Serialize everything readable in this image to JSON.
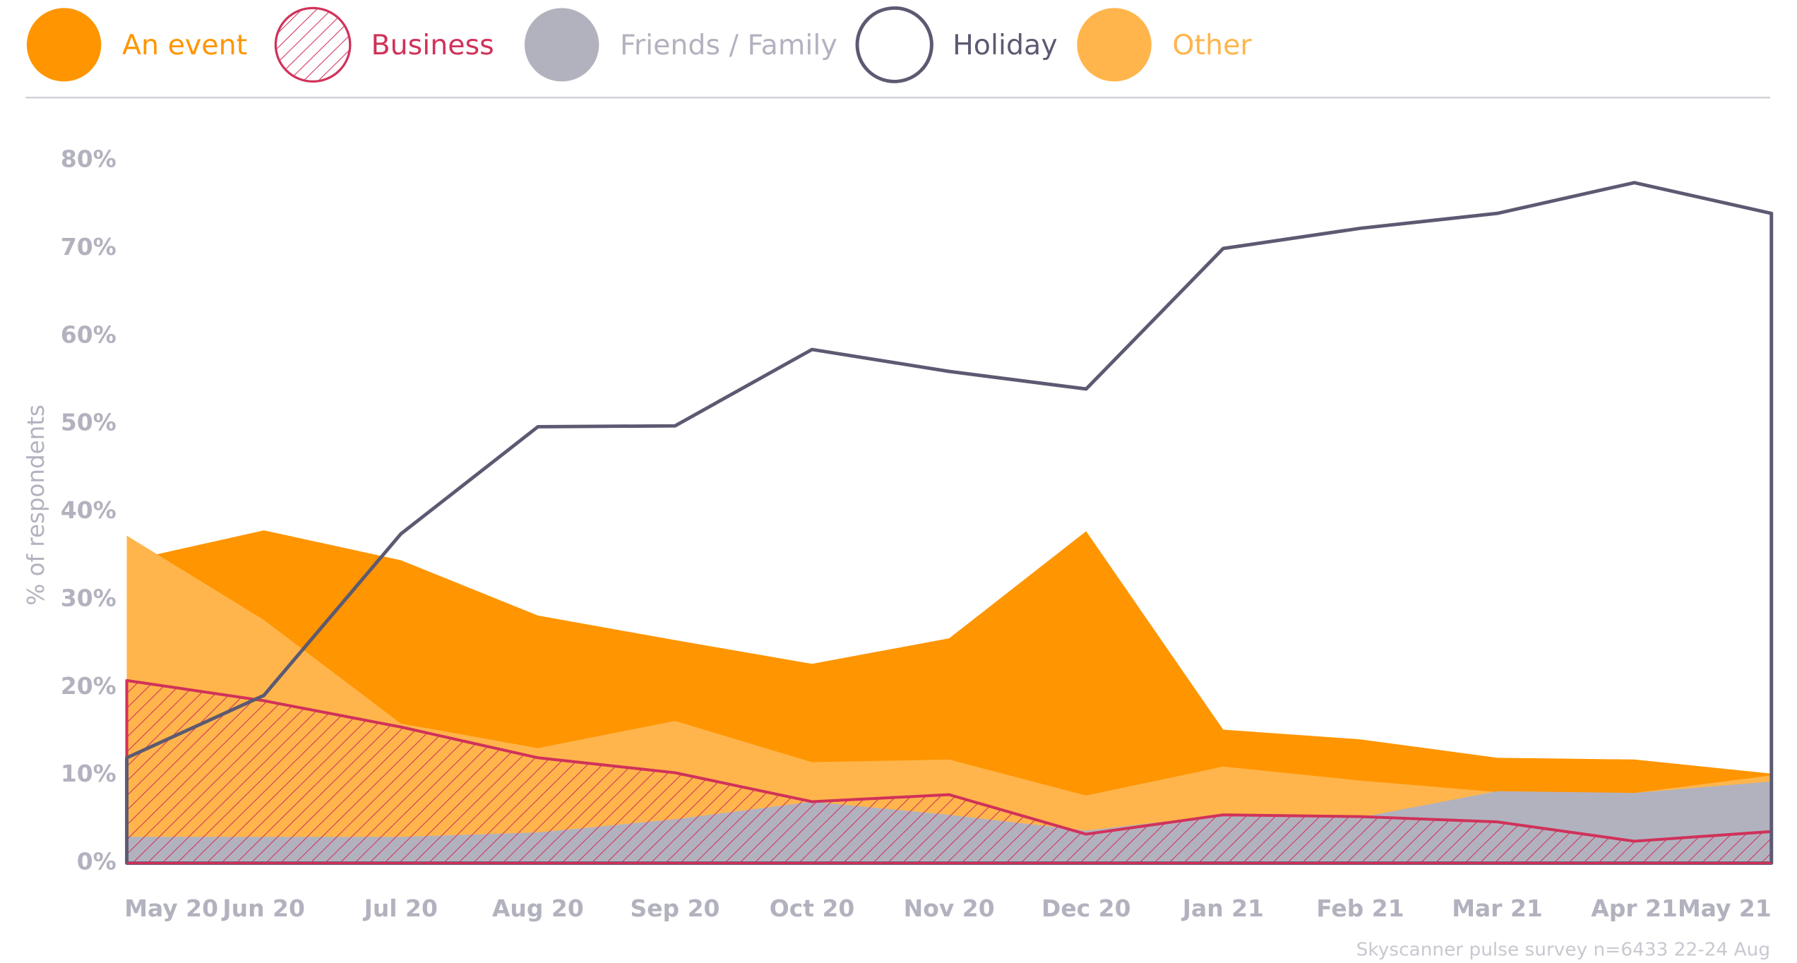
{
  "chart_data": {
    "type": "area",
    "y_label": "% of respondents",
    "source": "Skyscanner pulse survey n=6433 22-24 Aug",
    "categories": [
      "May 20",
      "Jun 20",
      "Jul 20",
      "Aug 20",
      "Sep 20",
      "Oct 20",
      "Nov 20",
      "Dec 20",
      "Jan 21",
      "Feb 21",
      "Mar 21",
      "Apr 21",
      "May 21"
    ],
    "series": [
      {
        "name": "An event",
        "color": "#ff9500",
        "style": "fill",
        "values": [
          34.4,
          37.9,
          34.5,
          28.2,
          25.4,
          22.7,
          25.6,
          37.8,
          15.2,
          14.1,
          12,
          11.8,
          10.2
        ]
      },
      {
        "name": "Business",
        "color": "#d0325a",
        "style": "hatch",
        "values": [
          20.8,
          18.5,
          15.5,
          12,
          10.3,
          7,
          7.8,
          3.3,
          5.5,
          5.3,
          4.7,
          2.5,
          3.6
        ]
      },
      {
        "name": "Friends / Family",
        "color": "#b2b2bf",
        "style": "fill",
        "values": [
          3,
          3,
          3,
          3.5,
          5,
          7,
          5.5,
          3.7,
          5.5,
          5.2,
          8.2,
          8,
          9.3
        ]
      },
      {
        "name": "Holiday",
        "color": "#5c5a72",
        "style": "outline",
        "values": [
          12,
          19.1,
          37.5,
          49.7,
          49.8,
          58.5,
          56,
          54,
          70,
          72.3,
          74,
          77.5,
          74
        ]
      },
      {
        "name": "Other",
        "color": "#ffb54c",
        "style": "fill",
        "values": [
          37.3,
          27.7,
          15.9,
          13.1,
          16.2,
          11.5,
          11.8,
          7.7,
          11,
          9.4,
          8.1,
          8,
          10
        ]
      }
    ],
    "draw_order": [
      0,
      4,
      2,
      1,
      3
    ],
    "ylim": [
      0,
      80
    ],
    "yticks": [
      {
        "value": 0,
        "label": "0%"
      },
      {
        "value": 10,
        "label": "10%"
      },
      {
        "value": 20,
        "label": "20%"
      },
      {
        "value": 30,
        "label": "30%"
      },
      {
        "value": 40,
        "label": "40%"
      },
      {
        "value": 50,
        "label": "50%"
      },
      {
        "value": 60,
        "label": "60%"
      },
      {
        "value": 70,
        "label": "70%"
      },
      {
        "value": 80,
        "label": "80%"
      }
    ]
  }
}
